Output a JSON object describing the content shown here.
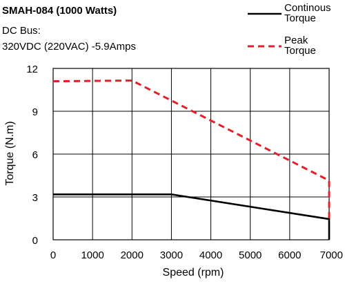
{
  "header": {
    "title": "SMAH-084 (1000 Watts)",
    "line1": "DC Bus:",
    "line2": "320VDC (220VAC)  -5.9Amps"
  },
  "colors": {
    "continuous": "#000000",
    "peak": "#e0202b",
    "grid": "#000000",
    "background": "#ffffff"
  },
  "chart_data": {
    "type": "line",
    "title": "",
    "xlabel": "Speed (rpm)",
    "ylabel": "Torque (N.m)",
    "xlim": [
      0,
      7000
    ],
    "ylim": [
      0,
      12
    ],
    "xticks": [
      0,
      1000,
      2000,
      3000,
      4000,
      5000,
      6000,
      7000
    ],
    "yticks": [
      0,
      3,
      6,
      9,
      12
    ],
    "grid": true,
    "legend_placement": "top-right",
    "series": [
      {
        "name": "Continous Torque",
        "legend_lines": [
          "Continous",
          "Torque"
        ],
        "style": "solid",
        "color": "#000000",
        "x": [
          0,
          3000,
          7000,
          7000
        ],
        "y": [
          3.18,
          3.18,
          1.45,
          0
        ]
      },
      {
        "name": "Peak Torque",
        "legend_lines": [
          "Peak",
          "Torque"
        ],
        "style": "dashed",
        "color": "#e0202b",
        "x": [
          0,
          2000,
          7000,
          7000
        ],
        "y": [
          11.1,
          11.15,
          4.15,
          1.45
        ]
      }
    ]
  }
}
